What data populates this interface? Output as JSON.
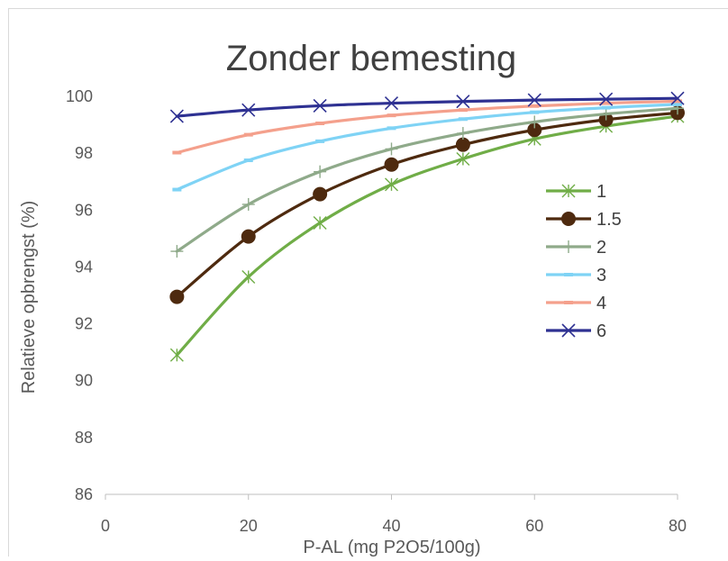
{
  "chart_data": {
    "type": "line",
    "title": "Zonder bemesting",
    "xlabel": "P-AL (mg P2O5/100g)",
    "ylabel": "Relatieve opbrengst (%)",
    "xlim": [
      0,
      80
    ],
    "ylim": [
      86,
      100
    ],
    "x_ticks": [
      0,
      20,
      40,
      60,
      80
    ],
    "y_ticks": [
      86,
      88,
      90,
      92,
      94,
      96,
      98,
      100
    ],
    "grid": false,
    "legend_position": "right",
    "x": [
      10,
      20,
      30,
      40,
      50,
      60,
      70,
      80
    ],
    "series": [
      {
        "name": "1",
        "color": "#70ad47",
        "marker": "star",
        "values": [
          90.9,
          93.65,
          95.55,
          96.9,
          97.8,
          98.5,
          98.95,
          99.3
        ]
      },
      {
        "name": "1.5",
        "color": "#4e2a0f",
        "marker": "circle",
        "values": [
          92.95,
          95.07,
          96.56,
          97.6,
          98.3,
          98.82,
          99.18,
          99.42
        ]
      },
      {
        "name": "2",
        "color": "#8faa8a",
        "marker": "plus",
        "values": [
          94.55,
          96.2,
          97.35,
          98.15,
          98.7,
          99.1,
          99.38,
          99.58
        ]
      },
      {
        "name": "3",
        "color": "#7fd3f5",
        "marker": "dash",
        "values": [
          96.72,
          97.75,
          98.42,
          98.88,
          99.2,
          99.44,
          99.6,
          99.72
        ]
      },
      {
        "name": "4",
        "color": "#f4a08c",
        "marker": "dash",
        "values": [
          98.02,
          98.65,
          99.05,
          99.33,
          99.52,
          99.66,
          99.76,
          99.83
        ]
      },
      {
        "name": "6",
        "color": "#2e3192",
        "marker": "x",
        "values": [
          99.3,
          99.52,
          99.67,
          99.76,
          99.82,
          99.87,
          99.9,
          99.93
        ]
      }
    ]
  }
}
